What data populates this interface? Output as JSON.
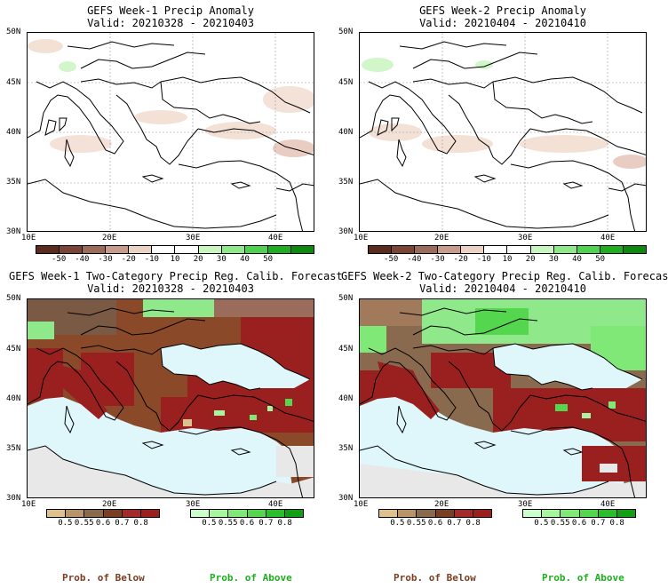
{
  "panels": [
    {
      "title": "GEFS Week-1 Precip Anomaly",
      "valid": "Valid: 20210328 - 20210403"
    },
    {
      "title": "GEFS Week-2 Precip Anomaly",
      "valid": "Valid: 20210404 - 20210410"
    },
    {
      "title": "GEFS Week-1 Two-Category Precip Reg. Calib. Forecast",
      "valid": "Valid: 20210328 - 20210403"
    },
    {
      "title": "GEFS Week-2 Two-Category Precip Reg. Calib. Forecast",
      "valid": "Valid: 20210404 - 20210410"
    }
  ],
  "axes": {
    "lat_labels": [
      "50N",
      "45N",
      "40N",
      "35N",
      "30N"
    ],
    "lon_labels": [
      "10E",
      "20E",
      "30E",
      "40E"
    ]
  },
  "anomaly_colorbar": {
    "ticks": [
      "-50",
      "-40",
      "-30",
      "-20",
      "-10",
      "10",
      "20",
      "30",
      "40",
      "50"
    ],
    "colors": [
      "#5b2c1e",
      "#7a4537",
      "#9b6b5c",
      "#c79c8c",
      "#ead2c5",
      "#ffffff",
      "#ffffff",
      "#c8f5c0",
      "#8fe88a",
      "#4fd24f",
      "#1fae1f",
      "#0d8a0d"
    ]
  },
  "prob_colorbar": {
    "ticks": [
      "0.5",
      "0.55",
      "0.6",
      "0.7",
      "0.8"
    ],
    "below_colors": [
      "#dfc08f",
      "#b9936a",
      "#8a6a4f",
      "#7a3f22",
      "#a22a2a",
      "#9a2020"
    ],
    "above_colors": [
      "#ccffcc",
      "#a8f5a0",
      "#7fe877",
      "#55d64f",
      "#2bbd2b",
      "#12a012"
    ]
  },
  "legend": {
    "below": "Prob. of Below",
    "above": "Prob. of Above",
    "below_color": "#7a3f22",
    "above_color": "#1fae1f"
  }
}
